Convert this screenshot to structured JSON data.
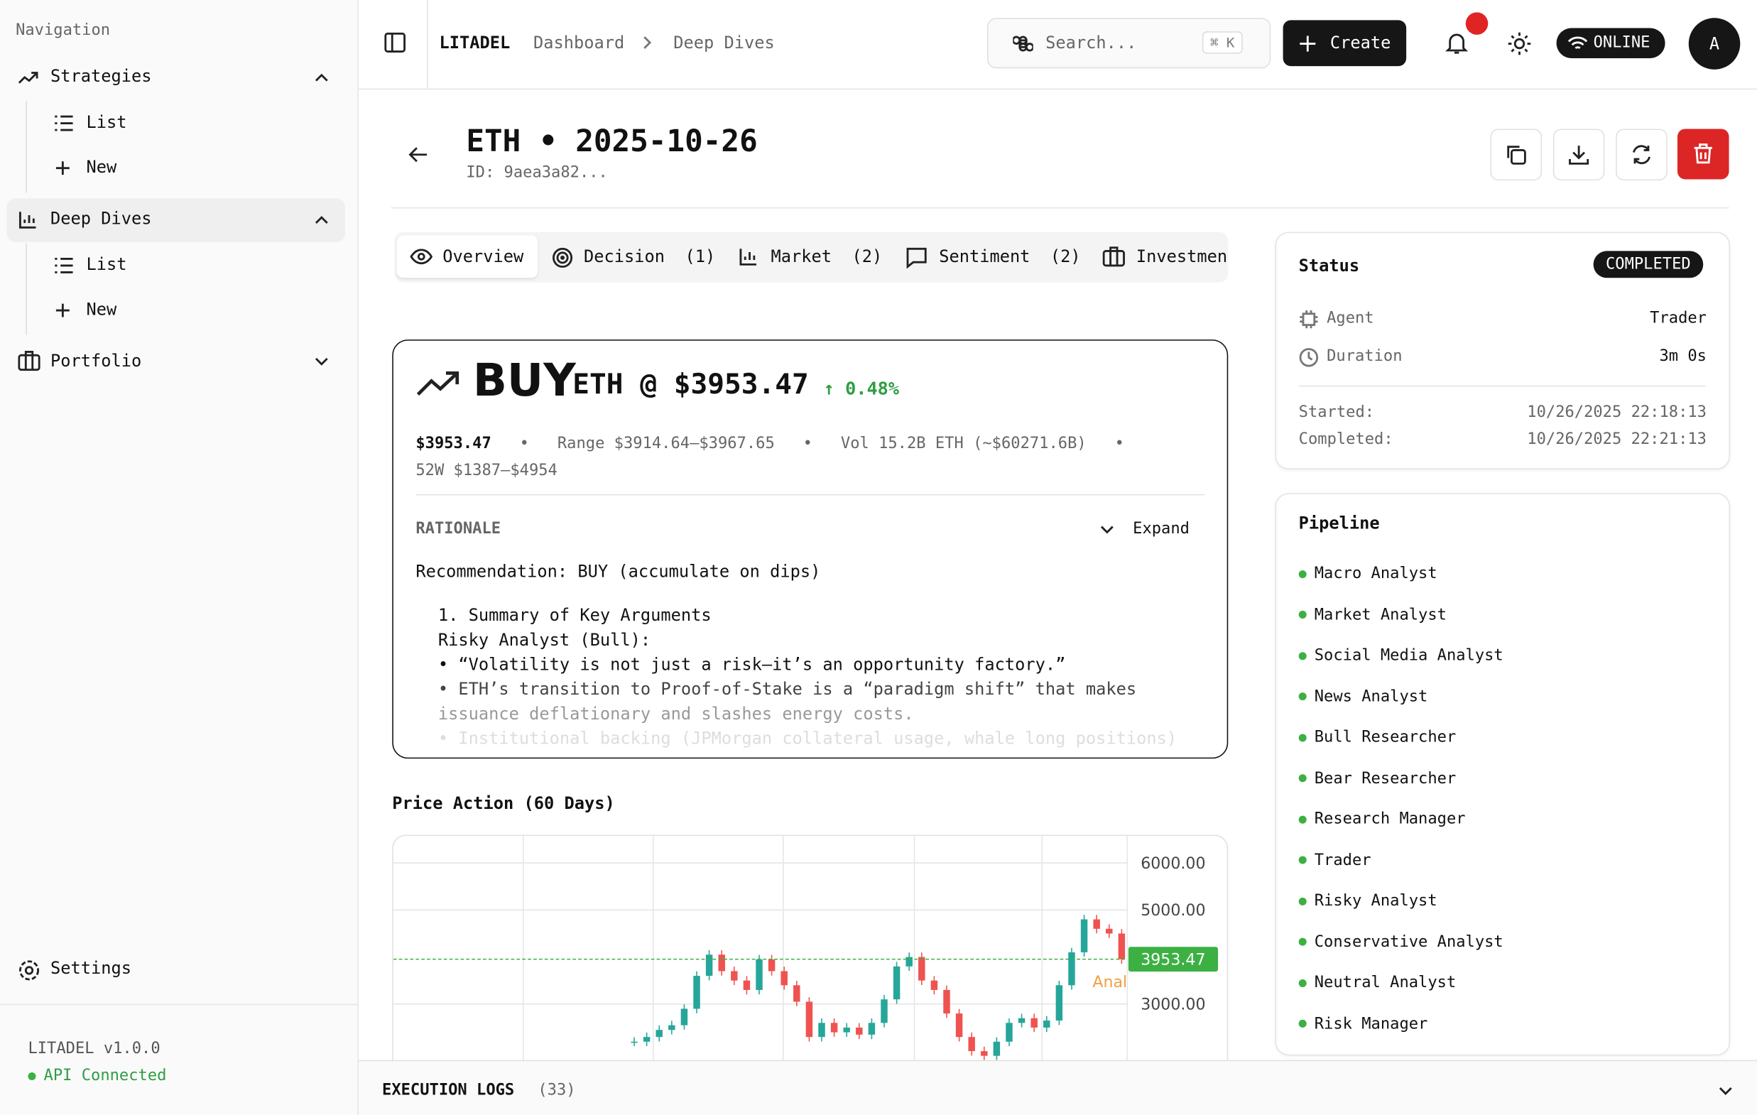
{
  "sidebar": {
    "heading": "Navigation",
    "strategies": "Strategies",
    "strategies_list": "List",
    "strategies_new": "New",
    "deep_dives": "Deep Dives",
    "deep_list": "List",
    "deep_new": "New",
    "portfolio": "Portfolio",
    "settings": "Settings",
    "version": "LITADEL v1.0.0",
    "api": "API Connected"
  },
  "header": {
    "brand": "LITADEL",
    "crumb1": "Dashboard",
    "crumb2": "Deep Dives",
    "search": "Search...",
    "shortcut": "⌘ K",
    "create": "Create",
    "status": "ONLINE",
    "avatar": "A"
  },
  "page": {
    "title": "ETH • 2025-10-26",
    "id": "ID: 9aea3a82...",
    "tabs": [
      "Overview",
      "Decision  (1)",
      "Market  (2)",
      "Sentiment  (2)",
      "Investmen"
    ],
    "decision": {
      "action": "BUY",
      "headline": "ETH @ $3953.47",
      "change": "↑ 0.48%",
      "price": "$3953.47",
      "range": "Range $3914.64–$3967.65",
      "volume": "Vol 15.2B ETH (~$60271.6B)",
      "week52": "52W $1387–$4954",
      "rationale_label": "RATIONALE",
      "expand": "Expand",
      "rationale": [
        "Recommendation: BUY (accumulate on dips)",
        "1. Summary of Key Arguments",
        "Risky Analyst (Bull):",
        "• “Volatility is not just a risk—it’s an opportunity factory.”",
        "• ETH’s transition to Proof-of-Stake is a “paradigm shift” that makes",
        "issuance deflationary and slashes energy costs.",
        "• Institutional backing (JPMorgan collateral usage, whale long positions)"
      ]
    },
    "status": {
      "title": "Status",
      "badge": "COMPLETED",
      "agent_label": "Agent",
      "agent": "Trader",
      "duration_label": "Duration",
      "duration": "3m 0s",
      "started_label": "Started:",
      "started": "10/26/2025 22:18:13",
      "completed_label": "Completed:",
      "completed": "10/26/2025 22:21:13"
    },
    "pipeline": {
      "title": "Pipeline",
      "steps": [
        "Macro Analyst",
        "Market Analyst",
        "Social Media Analyst",
        "News Analyst",
        "Bull Researcher",
        "Bear Researcher",
        "Research Manager",
        "Trader",
        "Risky Analyst",
        "Conservative Analyst",
        "Neutral Analyst",
        "Risk Manager"
      ]
    },
    "logs": {
      "title": "EXECUTION LOGS",
      "count": "(33)"
    }
  },
  "chart_data": {
    "type": "candlestick",
    "title": "Price Action (60 Days)",
    "ylim": [
      2120,
      6550
    ],
    "yticks": [
      {
        "value": 6000,
        "label": "6000.00"
      },
      {
        "value": 5000,
        "label": "5000.00"
      },
      {
        "value": 3000,
        "label": "3000.00"
      }
    ],
    "current": {
      "value": 3953.47,
      "label": "3953.47"
    },
    "annotation": "Anal",
    "grid": true,
    "up_color": "#26a69a",
    "down_color": "#ef5350",
    "current_color": "#3cb043",
    "closes": [
      2200,
      2300,
      2450,
      2550,
      2900,
      3600,
      4050,
      3700,
      3500,
      3300,
      3950,
      3700,
      3400,
      3050,
      2300,
      2600,
      2400,
      2500,
      2350,
      2600,
      3100,
      3800,
      4000,
      3500,
      3300,
      2800,
      2300,
      2000,
      1900,
      2200,
      2600,
      2700,
      2500,
      2650,
      3400,
      4100,
      4800,
      4600,
      4500,
      3953.47
    ]
  }
}
